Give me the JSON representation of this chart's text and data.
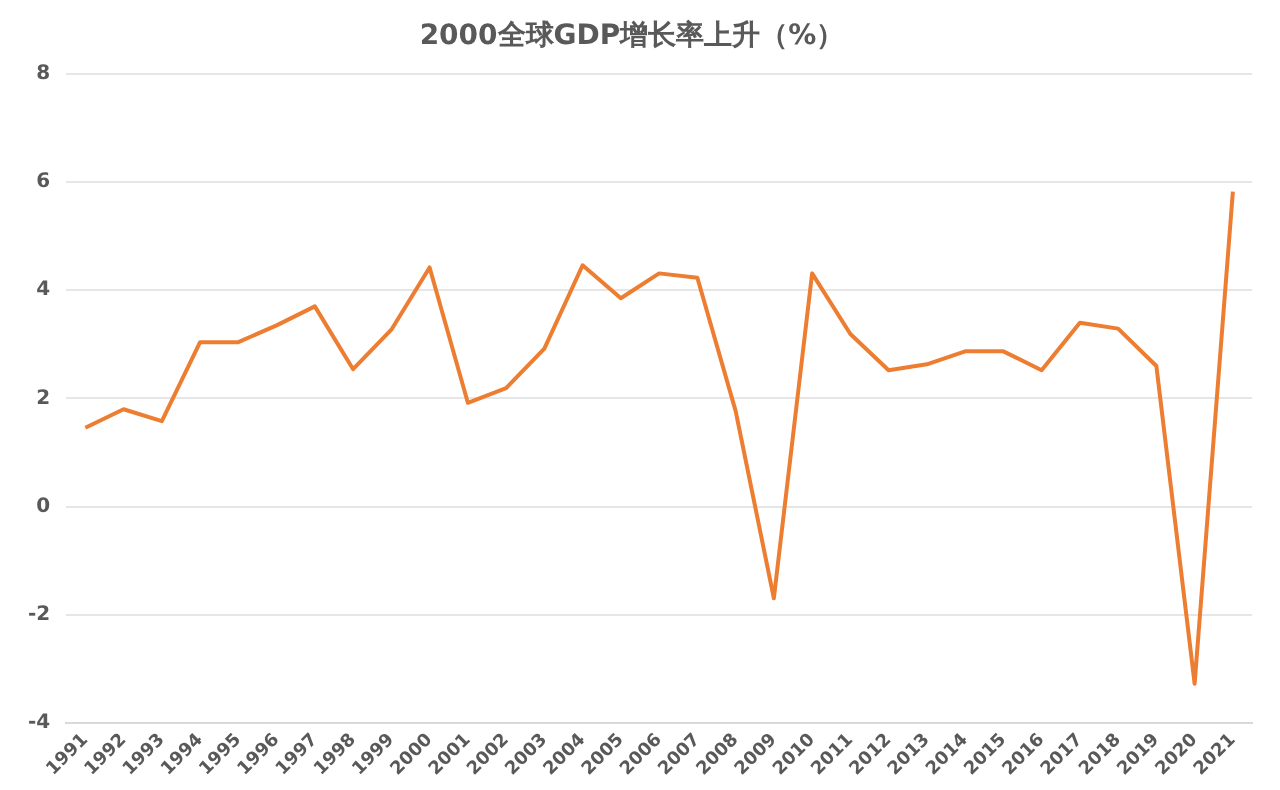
{
  "chart_data": {
    "type": "line",
    "title": "2000全球GDP增长率上升（%）",
    "categories": [
      "1991",
      "1992",
      "1993",
      "1994",
      "1995",
      "1996",
      "1997",
      "1998",
      "1999",
      "2000",
      "2001",
      "2002",
      "2003",
      "2004",
      "2005",
      "2006",
      "2007",
      "2008",
      "2009",
      "2010",
      "2011",
      "2012",
      "2013",
      "2014",
      "2015",
      "2016",
      "2017",
      "2018",
      "2019",
      "2020",
      "2021"
    ],
    "series": [
      {
        "color": "#ed7d31",
        "values": [
          1.46,
          1.8,
          1.58,
          3.04,
          3.04,
          3.35,
          3.7,
          2.54,
          3.27,
          4.42,
          1.92,
          2.19,
          2.92,
          4.46,
          3.85,
          4.31,
          4.23,
          1.77,
          -1.69,
          4.31,
          3.19,
          2.52,
          2.63,
          2.87,
          2.87,
          2.52,
          3.4,
          3.29,
          2.6,
          -3.27,
          5.82
        ]
      }
    ],
    "ylim": [
      -4,
      8
    ],
    "yticks": [
      -4,
      -2,
      0,
      2,
      4,
      6,
      8
    ],
    "grid": "y",
    "legend": false,
    "marker": "none",
    "line_style": "solid"
  }
}
